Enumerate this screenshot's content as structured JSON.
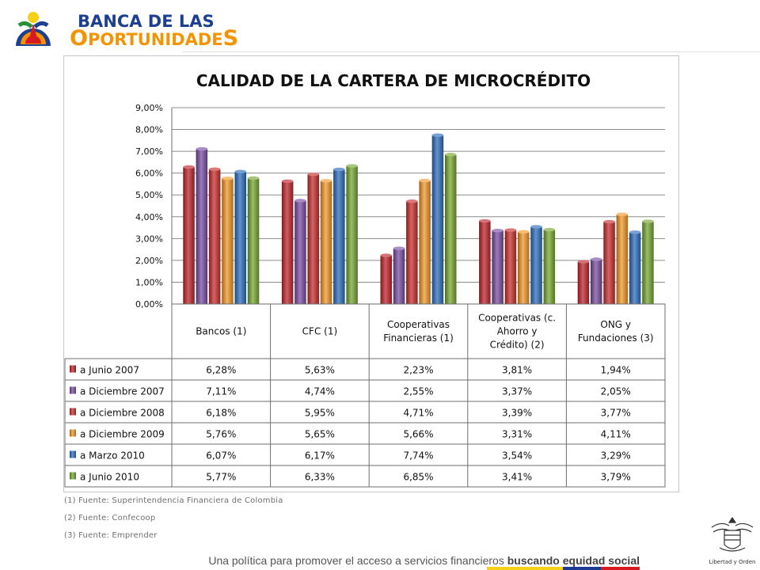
{
  "brand": {
    "line1": "BANCA DE LAS",
    "line2_first": "O",
    "line2_rest": "PORTUNIDADE",
    "line2_last": "S"
  },
  "chart_data": {
    "type": "bar",
    "title": "CALIDAD DE LA CARTERA DE MICROCRÉDITO",
    "categories": [
      "Bancos (1)",
      "CFC (1)",
      "Cooperativas Financieras (1)",
      "Cooperativas (c. Ahorro y Crédito) (2)",
      "ONG y Fundaciones (3)"
    ],
    "category_lines": [
      [
        "Bancos (1)"
      ],
      [
        "CFC (1)"
      ],
      [
        "Cooperativas",
        "Financieras (1)"
      ],
      [
        "Cooperativas (c.",
        "Ahorro y",
        "Crédito) (2)"
      ],
      [
        "ONG y",
        "Fundaciones (3)"
      ]
    ],
    "yticks": [
      "0,00%",
      "1,00%",
      "2,00%",
      "3,00%",
      "4,00%",
      "5,00%",
      "6,00%",
      "7,00%",
      "8,00%",
      "9,00%"
    ],
    "ylim": [
      0,
      9
    ],
    "grid": true,
    "legend": "data table below chart",
    "series": [
      {
        "name": "a Junio 2007",
        "color": "#c0262d",
        "values": [
          6.28,
          5.63,
          2.23,
          3.81,
          1.94
        ],
        "labels": [
          "6,28%",
          "5,63%",
          "2,23%",
          "3,81%",
          "1,94%"
        ]
      },
      {
        "name": "a Diciembre 2007",
        "color": "#7a4fa3",
        "values": [
          7.11,
          4.74,
          2.55,
          3.37,
          2.05
        ],
        "labels": [
          "7,11%",
          "4,74%",
          "2,55%",
          "3,37%",
          "2,05%"
        ]
      },
      {
        "name": "a Diciembre 2008",
        "color": "#c9302f",
        "values": [
          6.18,
          5.95,
          4.71,
          3.39,
          3.77
        ],
        "labels": [
          "6,18%",
          "5,95%",
          "4,71%",
          "3,39%",
          "3,77%"
        ]
      },
      {
        "name": "a Diciembre 2009",
        "color": "#f39a2b",
        "values": [
          5.76,
          5.65,
          5.66,
          3.31,
          4.11
        ],
        "labels": [
          "5,76%",
          "5,65%",
          "5,66%",
          "3,31%",
          "4,11%"
        ]
      },
      {
        "name": "a Marzo 2010",
        "color": "#2e6fc0",
        "values": [
          6.07,
          6.17,
          7.74,
          3.54,
          3.29
        ],
        "labels": [
          "6,07%",
          "6,17%",
          "7,74%",
          "3,54%",
          "3,29%"
        ]
      },
      {
        "name": "a Junio 2010",
        "color": "#78a833",
        "values": [
          5.77,
          6.33,
          6.85,
          3.41,
          3.79
        ],
        "labels": [
          "5,77%",
          "6,33%",
          "6,85%",
          "3,41%",
          "3,79%"
        ]
      }
    ]
  },
  "footnotes": [
    "(1) Fuente: Superintendencia Financiera de Colombia",
    "(2) Fuente: Confecoop",
    "(3) Fuente: Emprender"
  ],
  "slogan": {
    "text": "Una política para promover el acceso a servicios financieros ",
    "bold": "buscando equidad social"
  },
  "seal": {
    "caption": "Libertad y Orden"
  },
  "colors": {
    "flag_yellow": "#f7d117",
    "flag_blue": "#1f3a93",
    "flag_red": "#d71920",
    "brand_blue": "#1d3f8f",
    "brand_orange": "#f29400"
  }
}
